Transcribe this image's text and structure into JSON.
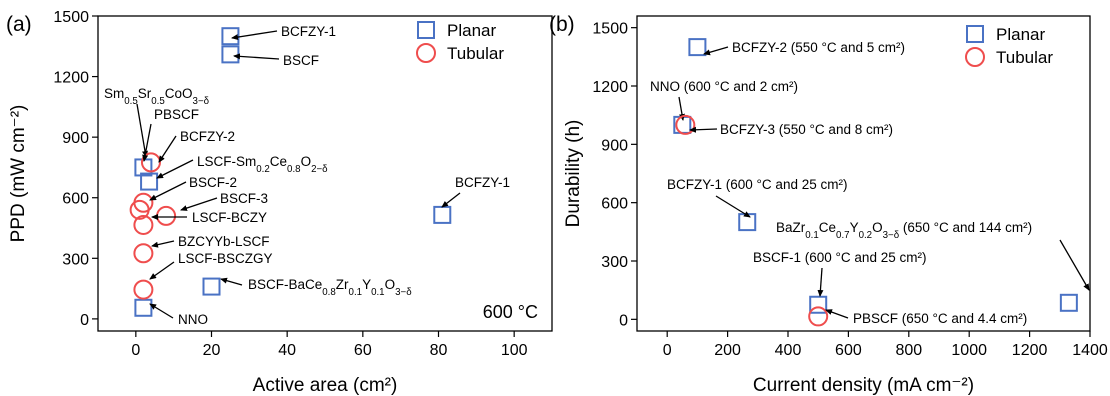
{
  "chart_data": [
    {
      "type": "scatter",
      "panel_label": "(a)",
      "xlabel": "Active area (cm²)",
      "ylabel": "PPD (mW cm⁻²)",
      "xlim": [
        -10,
        110
      ],
      "ylim": [
        -60,
        1500
      ],
      "xticks": [
        "0",
        "20",
        "40",
        "60",
        "80",
        "100"
      ],
      "yticks": [
        "0",
        "300",
        "600",
        "900",
        "1200",
        "1500"
      ],
      "condition_note": "600 °C",
      "legend": {
        "position": "top-right",
        "entries": [
          "Planar",
          "Tubular"
        ]
      },
      "grid": false,
      "series": [
        {
          "name": "Planar",
          "marker": "square",
          "color": "#4a72c4",
          "points": [
            {
              "x": 25,
              "y": 1400,
              "label": "BCFZY-1"
            },
            {
              "x": 25,
              "y": 1310,
              "label": "BSCF"
            },
            {
              "x": 81,
              "y": 515,
              "label": "BCFZY-1"
            },
            {
              "x": 20,
              "y": 160,
              "label": "BSCF-BaCe0.8Zr0.1Y0.1O3−δ"
            },
            {
              "x": 2,
              "y": 55,
              "label": "NNO"
            },
            {
              "x": 2,
              "y": 750,
              "label": "Sm0.5Sr0.5CoO3−δ"
            },
            {
              "x": 3.5,
              "y": 680,
              "label": "LSCF-Sm0.2Ce0.8O2−δ"
            }
          ]
        },
        {
          "name": "Tubular",
          "marker": "circle",
          "color": "#ef4d4d",
          "points": [
            {
              "x": 4,
              "y": 775,
              "label": "BCFZY-2"
            },
            {
              "x": 2,
              "y": 575,
              "label": "BSCF-2"
            },
            {
              "x": 1,
              "y": 540,
              "label": "PBSCF"
            },
            {
              "x": 8,
              "y": 510,
              "label": "BSCF-3"
            },
            {
              "x": 2,
              "y": 465,
              "label": "LSCF-BCZY"
            },
            {
              "x": 2,
              "y": 325,
              "label": "BZCYYb-LSCF"
            },
            {
              "x": 2,
              "y": 145,
              "label": "LSCF-BSCZGY"
            }
          ]
        }
      ]
    },
    {
      "type": "scatter",
      "panel_label": "(b)",
      "xlabel": "Current density (mA cm⁻²)",
      "ylabel": "Durability (h)",
      "xlim": [
        -100,
        1400
      ],
      "ylim": [
        -60,
        1560
      ],
      "xticks": [
        "0",
        "200",
        "400",
        "600",
        "800",
        "1000",
        "1200",
        "1400"
      ],
      "yticks": [
        "0",
        "300",
        "600",
        "900",
        "1200",
        "1500"
      ],
      "legend": {
        "position": "top-right",
        "entries": [
          "Planar",
          "Tubular"
        ]
      },
      "grid": false,
      "series": [
        {
          "name": "Planar",
          "marker": "square",
          "color": "#4a72c4",
          "points": [
            {
              "x": 100,
              "y": 1400,
              "label": "BCFZY-2 (550 °C and 5 cm²)"
            },
            {
              "x": 265,
              "y": 500,
              "label": "BCFZY-1 (600 °C and 25 cm²)"
            },
            {
              "x": 500,
              "y": 75,
              "label": "BSCF-1 (600 °C and 25 cm²)"
            },
            {
              "x": 1330,
              "y": 85,
              "label": "BaZr0.1Ce0.7Y0.2O3−δ (650 °C and 144 cm²)"
            },
            {
              "x": 50,
              "y": 1000,
              "label": "NNO (600 °C and 2 cm²)"
            }
          ]
        },
        {
          "name": "Tubular",
          "marker": "circle",
          "color": "#ef4d4d",
          "points": [
            {
              "x": 60,
              "y": 1000,
              "label": "BCFZY-3 (550 °C and 8 cm²)"
            },
            {
              "x": 500,
              "y": 15,
              "label": "PBSCF (650 °C and 4.4 cm²)"
            }
          ]
        }
      ]
    }
  ]
}
